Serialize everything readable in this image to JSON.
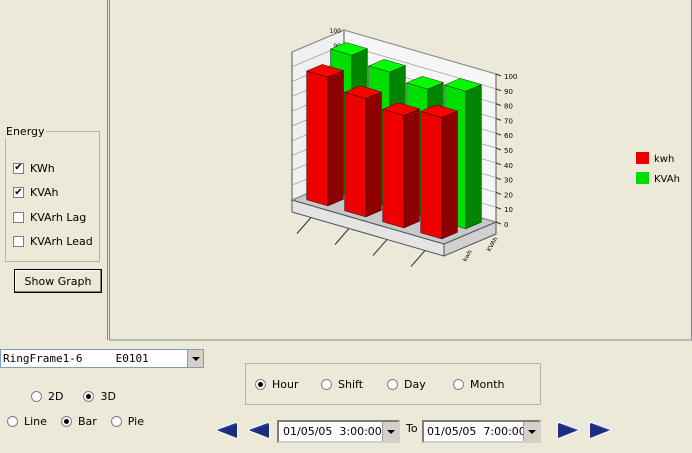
{
  "energy": {
    "title": "Energy",
    "options": [
      {
        "label": "KWh",
        "checked": true
      },
      {
        "label": "KVAh",
        "checked": true
      },
      {
        "label": "KVArh Lag",
        "checked": false
      },
      {
        "label": "KVArh Lead",
        "checked": false
      }
    ]
  },
  "show_graph": "Show Graph",
  "chart_data": {
    "type": "bar3d",
    "categories": [
      null,
      null,
      null,
      null
    ],
    "series": [
      {
        "name": "kwh",
        "color": "#ee0000",
        "values": [
          87,
          80,
          76,
          82
        ]
      },
      {
        "name": "KVAh",
        "color": "#00dd00",
        "values": [
          95,
          91,
          87,
          93
        ]
      }
    ],
    "ylim": [
      0,
      100
    ],
    "yticks": [
      0,
      10,
      20,
      30,
      40,
      50,
      60,
      70,
      80,
      90,
      100
    ],
    "grid": true,
    "legend": "right"
  },
  "meter": "RingFrame1-6     E0101",
  "dimension": {
    "options": [
      "2D",
      "3D"
    ],
    "selected": 1
  },
  "chart_type": {
    "options": [
      "Line",
      "Bar",
      "Pie"
    ],
    "selected": 1
  },
  "period": {
    "options": [
      "Hour",
      "Shift",
      "Day",
      "Month"
    ],
    "selected": 0
  },
  "from": "01/05/05  3:00:00",
  "to_label": "To",
  "to": "01/05/05  7:00:00"
}
